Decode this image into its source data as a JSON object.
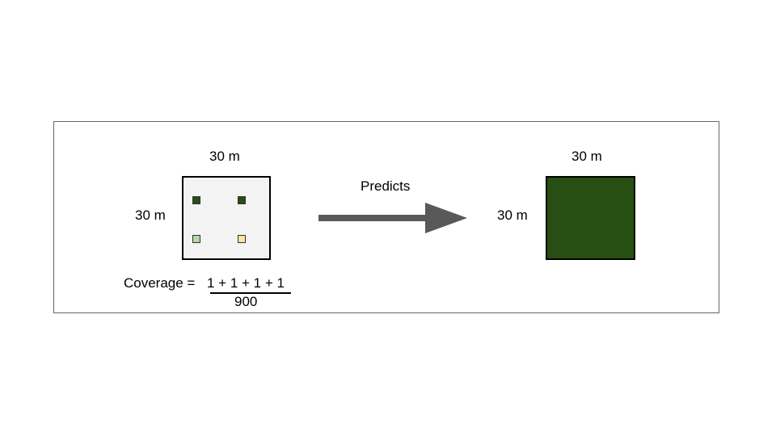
{
  "diagram": {
    "input_cell": {
      "width_label": "30 m",
      "height_label": "30 m",
      "background_color": "#f3f3f3",
      "samples": [
        {
          "name": "sample-top-left",
          "color": "#274e13"
        },
        {
          "name": "sample-top-right",
          "color": "#274e13"
        },
        {
          "name": "sample-bottom-left",
          "color": "#b6d7a8"
        },
        {
          "name": "sample-bottom-right",
          "color": "#ffe599"
        }
      ]
    },
    "formula": {
      "prefix": "Coverage =",
      "numerator": "1 + 1 + 1 + 1",
      "denominator": "900"
    },
    "arrow": {
      "label": "Predicts",
      "color": "#595959"
    },
    "output_cell": {
      "width_label": "30 m",
      "height_label": "30 m",
      "fill_color": "#274e13"
    }
  }
}
